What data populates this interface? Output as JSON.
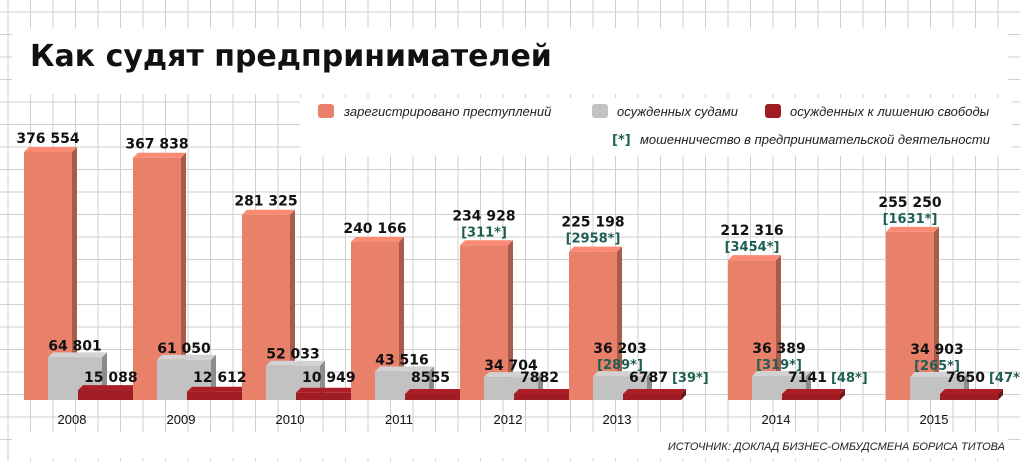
{
  "chart_data": {
    "type": "bar",
    "title": "Как судят предпринимателей",
    "categories": [
      "2008",
      "2009",
      "2010",
      "2011",
      "2012",
      "2013",
      "2014",
      "2015"
    ],
    "series": [
      {
        "name": "зарегистрировано преступлений",
        "values": [
          376554,
          367838,
          281325,
          240166,
          234928,
          225198,
          212316,
          255250
        ],
        "labels": [
          "376 554",
          "367 838",
          "281 325",
          "240 166",
          "234 928",
          "225 198",
          "212 316",
          "255 250"
        ]
      },
      {
        "name": "осужденных судами",
        "values": [
          64801,
          61050,
          52033,
          43516,
          34704,
          36203,
          36389,
          34903
        ],
        "labels": [
          "64 801",
          "61 050",
          "52 033",
          "43 516",
          "34 704",
          "36 203",
          "36 389",
          "34 903"
        ]
      },
      {
        "name": "осужденных к лишению свободы",
        "values": [
          15088,
          12612,
          10949,
          8555,
          7882,
          6787,
          7141,
          7650
        ],
        "labels": [
          "15 088",
          "12 612",
          "10 949",
          "8555",
          "7882",
          "6787",
          "7141",
          "7650"
        ]
      }
    ],
    "fraud_note": {
      "label": "мошенничество в предпринимательской деятельности",
      "marker": "[*]",
      "registered": [
        "",
        "",
        "",
        "",
        "[311*]",
        "[2958*]",
        "[3454*]",
        "[1631*]"
      ],
      "convicted": [
        "",
        "",
        "",
        "",
        "",
        "[289*]",
        "[319*]",
        "[265*]"
      ],
      "imprisoned": [
        "",
        "",
        "",
        "",
        "",
        "[39*]",
        "[48*]",
        "[47*]"
      ]
    },
    "source": "ИСТОЧНИК: ДОКЛАД БИЗНЕС-ОМБУДСМЕНА БОРИСА ТИТОВА",
    "colors": {
      "registered": "#e8806a",
      "convicted": "#c2c2c2",
      "imprisoned": "#9e1c22",
      "fraud_text": "#1f5e52",
      "grid": "#cfcfcf"
    }
  }
}
